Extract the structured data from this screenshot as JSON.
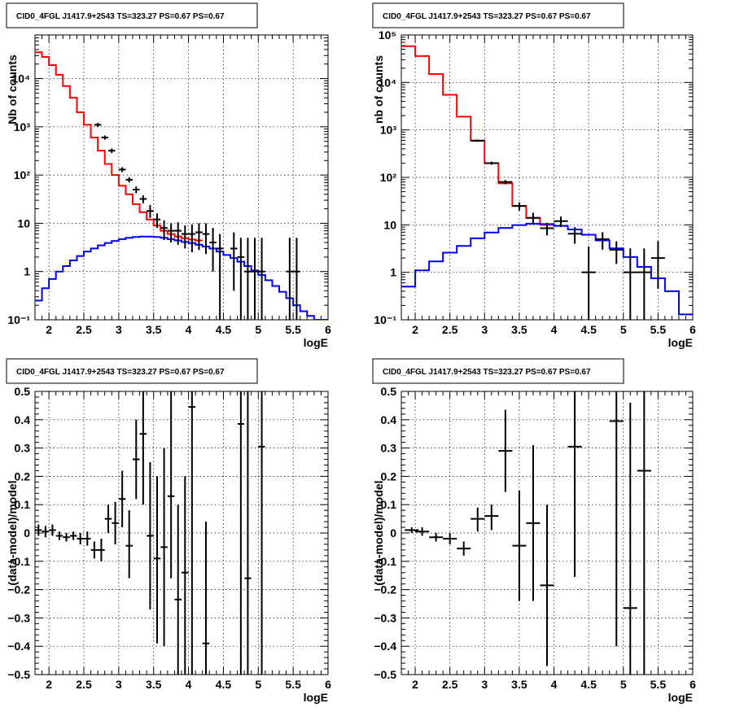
{
  "colors": {
    "data": "#000000",
    "total_model": "#ff0000",
    "component_model": "#0000ff",
    "grid": "#000000",
    "background": "#ffffff"
  },
  "chart_data": [
    {
      "type": "line",
      "scale_y": "log",
      "title": "CID0_4FGL J1417.9+2543 TS=323.27 PS=0.67 PS=0.67",
      "xlabel": "logE",
      "ylabel": "Nb of counts",
      "xlim": [
        1.8,
        6.0
      ],
      "ylim": [
        0.1,
        80000
      ],
      "x_ticks": [
        2,
        2.5,
        3,
        3.5,
        4,
        4.5,
        5,
        5.5,
        6
      ],
      "x_tick_labels": [
        "2",
        "2.5",
        "3",
        "3.5",
        "4",
        "4.5",
        "5",
        "5.5",
        "6"
      ],
      "y_ticks": [
        0.1,
        1,
        10,
        100,
        1000,
        10000
      ],
      "y_tick_labels": [
        "10⁻¹",
        "1",
        "10",
        "10²",
        "10³",
        "10⁴"
      ],
      "grid": true,
      "series": [
        {
          "kind": "step",
          "color": "total_model",
          "edges": [
            1.8,
            1.9,
            2.0,
            2.1,
            2.2,
            2.3,
            2.4,
            2.5,
            2.6,
            2.7,
            2.8,
            2.9,
            3.0,
            3.1,
            3.2,
            3.3,
            3.4,
            3.5,
            3.6,
            3.7,
            3.8,
            3.9,
            4.0,
            4.1,
            4.2
          ],
          "values": [
            35000,
            28000,
            19000,
            12000,
            7000,
            4000,
            2000,
            1100,
            600,
            320,
            170,
            100,
            60,
            40,
            25,
            17,
            12,
            9,
            7,
            6,
            5.3,
            4.9,
            4.6,
            4.4
          ]
        },
        {
          "kind": "step",
          "color": "component_model",
          "edges": [
            1.8,
            1.9,
            2.0,
            2.1,
            2.2,
            2.3,
            2.4,
            2.5,
            2.6,
            2.7,
            2.8,
            2.9,
            3.0,
            3.1,
            3.2,
            3.3,
            3.4,
            3.5,
            3.6,
            3.7,
            3.8,
            3.9,
            4.0,
            4.1,
            4.2,
            4.3,
            4.4,
            4.5,
            4.6,
            4.7,
            4.8,
            4.9,
            5.0,
            5.1,
            5.2,
            5.3,
            5.4,
            5.5,
            5.6,
            5.7,
            5.8,
            5.9,
            6.0
          ],
          "values": [
            0.25,
            0.45,
            0.7,
            1.0,
            1.3,
            1.7,
            2.1,
            2.6,
            3.0,
            3.5,
            3.9,
            4.3,
            4.7,
            5.0,
            5.2,
            5.3,
            5.3,
            5.2,
            5.0,
            4.7,
            4.4,
            4.1,
            3.9,
            3.6,
            3.3,
            3.0,
            2.6,
            2.2,
            1.9,
            1.6,
            1.3,
            1.05,
            0.85,
            0.66,
            0.5,
            0.38,
            0.28,
            0.2,
            0.15,
            0.12,
            0.1,
            0.1
          ]
        },
        {
          "kind": "errorbar",
          "color": "data",
          "x": [
            2.7,
            2.8,
            2.9,
            3.05,
            3.15,
            3.25,
            3.35,
            3.45,
            3.55,
            3.65,
            3.75,
            3.85,
            3.95,
            4.05,
            4.15,
            4.25,
            4.35,
            4.45,
            4.65,
            4.75,
            4.85,
            4.95,
            5.05,
            5.45,
            5.55
          ],
          "xerr": 0.05,
          "y": [
            1100,
            600,
            320,
            130,
            80,
            50,
            32,
            18,
            12,
            8,
            7,
            7,
            6,
            6,
            6.5,
            6,
            4,
            3,
            3,
            2,
            1,
            1,
            1,
            1,
            1
          ],
          "ylo": [
            1000,
            540,
            285,
            115,
            70,
            42,
            26,
            13,
            8,
            4.5,
            4,
            3.6,
            3.0,
            2.5,
            2.8,
            2.3,
            1.0,
            0.1,
            0.4,
            0.1,
            0.1,
            0.1,
            0.1,
            0.1,
            0.1
          ],
          "yhi": [
            1200,
            660,
            355,
            145,
            90,
            58,
            38,
            24,
            16,
            11.5,
            10,
            10.5,
            9,
            9.5,
            10,
            10,
            8,
            6,
            6.5,
            5,
            5,
            5,
            5,
            5,
            5
          ]
        }
      ]
    },
    {
      "type": "line",
      "scale_y": "log",
      "title": "CID0_4FGL J1417.9+2543 TS=323.27 PS=0.67 PS=0.67",
      "xlabel": "logE",
      "ylabel": "nb of counts",
      "xlim": [
        1.8,
        6.0
      ],
      "ylim": [
        0.1,
        100000
      ],
      "x_ticks": [
        2,
        2.5,
        3,
        3.5,
        4,
        4.5,
        5,
        5.5,
        6
      ],
      "x_tick_labels": [
        "2",
        "2.5",
        "3",
        "3.5",
        "4",
        "4.5",
        "5",
        "5.5",
        "6"
      ],
      "y_ticks": [
        0.1,
        1,
        10,
        100,
        1000,
        10000,
        100000
      ],
      "y_tick_labels": [
        "10⁻¹",
        "1",
        "10",
        "10²",
        "10³",
        "10⁴",
        "10⁵"
      ],
      "grid": true,
      "series": [
        {
          "kind": "step",
          "color": "total_model",
          "edges": [
            1.8,
            2.0,
            2.2,
            2.4,
            2.6,
            2.8,
            3.0,
            3.2,
            3.4,
            3.6,
            3.8,
            4.0
          ],
          "values": [
            58000,
            36000,
            15000,
            5500,
            1900,
            600,
            200,
            75,
            25,
            14,
            10
          ]
        },
        {
          "kind": "step",
          "color": "component_model",
          "edges": [
            1.8,
            2.0,
            2.2,
            2.4,
            2.6,
            2.8,
            3.0,
            3.2,
            3.4,
            3.6,
            3.8,
            4.0,
            4.2,
            4.4,
            4.6,
            4.8,
            5.0,
            5.2,
            5.4,
            5.6,
            5.8,
            6.0
          ],
          "values": [
            0.5,
            1.1,
            1.7,
            2.6,
            3.6,
            5.2,
            6.9,
            8.6,
            9.9,
            10.6,
            10.4,
            9.5,
            8.0,
            6.2,
            4.7,
            3.2,
            2.1,
            1.3,
            0.75,
            0.4,
            0.13
          ]
        },
        {
          "kind": "errorbar",
          "color": "data",
          "x": [
            2.9,
            3.1,
            3.3,
            3.5,
            3.7,
            3.9,
            4.1,
            4.3,
            4.5,
            4.7,
            4.9,
            5.1,
            5.3,
            5.5
          ],
          "xerr": 0.1,
          "y": [
            590,
            200,
            80,
            25,
            14,
            8.5,
            12,
            6.5,
            1,
            5,
            3,
            1,
            1,
            2
          ],
          "ylo": [
            560,
            185,
            72,
            20,
            10.5,
            6,
            9,
            4,
            0.1,
            3,
            1.5,
            0.1,
            0.1,
            0.45
          ],
          "yhi": [
            620,
            215,
            88,
            30,
            18,
            11,
            15,
            9,
            3.5,
            7,
            4.5,
            3.2,
            3.2,
            4.5
          ]
        }
      ]
    },
    {
      "type": "scatter",
      "title": "CID0_4FGL J1417.9+2543 TS=323.27 PS=0.67 PS=0.67",
      "xlabel": "logE",
      "ylabel": "(data-model)/model",
      "xlim": [
        1.8,
        6.0
      ],
      "ylim": [
        -0.5,
        0.5
      ],
      "x_ticks": [
        2,
        2.5,
        3,
        3.5,
        4,
        4.5,
        5,
        5.5,
        6
      ],
      "x_tick_labels": [
        "2",
        "2.5",
        "3",
        "3.5",
        "4",
        "4.5",
        "5",
        "5.5",
        "6"
      ],
      "y_ticks": [
        -0.5,
        -0.4,
        -0.3,
        -0.2,
        -0.1,
        0,
        0.1,
        0.2,
        0.3,
        0.4,
        0.5
      ],
      "y_tick_labels": [
        "−0.5",
        "−0.4",
        "−0.3",
        "−0.2",
        "−0.1",
        "0",
        "0.1",
        "0.2",
        "0.3",
        "0.4",
        "0.5"
      ],
      "grid": true,
      "series": [
        {
          "kind": "errorbar",
          "color": "data",
          "x": [
            1.85,
            1.95,
            2.05,
            2.15,
            2.25,
            2.35,
            2.45,
            2.55,
            2.65,
            2.75,
            2.85,
            2.95,
            3.05,
            3.15,
            3.25,
            3.35,
            3.45,
            3.55,
            3.65,
            3.75,
            3.85,
            3.95,
            4.05,
            4.25,
            4.75,
            4.85,
            5.05
          ],
          "xerr": [
            0.05,
            0.05,
            0.05,
            0.05,
            0.05,
            0.05,
            0.05,
            0.05,
            0.05,
            0.05,
            0.05,
            0.05,
            0.05,
            0.05,
            0.05,
            0.05,
            0.05,
            0.05,
            0.05,
            0.05,
            0.05,
            0.05,
            0.05,
            0.05,
            0,
            0,
            0
          ],
          "y": [
            0.01,
            0.005,
            0.01,
            -0.01,
            -0.015,
            -0.01,
            -0.02,
            -0.02,
            -0.06,
            -0.06,
            0.05,
            0.035,
            0.12,
            -0.045,
            0.26,
            0.35,
            -0.01,
            -0.09,
            -0.05,
            0.13,
            -0.235,
            -0.14,
            0.445,
            -0.39,
            0.385,
            -0.16,
            0.305
          ],
          "ylo": [
            -0.01,
            -0.015,
            -0.01,
            -0.025,
            -0.03,
            -0.025,
            -0.04,
            -0.045,
            -0.09,
            -0.1,
            0,
            -0.04,
            0.02,
            -0.16,
            0.12,
            0.1,
            -0.27,
            -0.39,
            -0.4,
            -0.16,
            -0.5,
            -0.5,
            -0.5,
            -0.5,
            -0.5,
            -0.5,
            -0.5
          ],
          "yhi": [
            0.03,
            0.025,
            0.03,
            0.005,
            0,
            0.005,
            0,
            0.005,
            -0.03,
            -0.02,
            0.1,
            0.11,
            0.22,
            0.08,
            0.4,
            0.5,
            0.25,
            0.2,
            0.3,
            0.5,
            0.1,
            0.2,
            0.5,
            0.04,
            0.5,
            0.5,
            0.5
          ]
        }
      ]
    },
    {
      "type": "scatter",
      "title": "CID0_4FGL J1417.9+2543 TS=323.27 PS=0.67 PS=0.67",
      "xlabel": "logE",
      "ylabel": "(data-model)/model",
      "xlim": [
        1.8,
        6.0
      ],
      "ylim": [
        -0.5,
        0.5
      ],
      "x_ticks": [
        2,
        2.5,
        3,
        3.5,
        4,
        4.5,
        5,
        5.5,
        6
      ],
      "x_tick_labels": [
        "2",
        "2.5",
        "3",
        "3.5",
        "4",
        "4.5",
        "5",
        "5.5",
        "6"
      ],
      "y_ticks": [
        -0.5,
        -0.4,
        -0.3,
        -0.2,
        -0.1,
        0,
        0.1,
        0.2,
        0.3,
        0.4,
        0.5
      ],
      "y_tick_labels": [
        "−0.5",
        "−0.4",
        "−0.3",
        "−0.2",
        "−0.1",
        "0",
        "0.1",
        "0.2",
        "0.3",
        "0.4",
        "0.5"
      ],
      "grid": true,
      "series": [
        {
          "kind": "errorbar",
          "color": "data",
          "x": [
            1.95,
            2.1,
            2.3,
            2.5,
            2.7,
            2.9,
            3.1,
            3.3,
            3.5,
            3.7,
            3.9,
            4.3,
            4.9,
            5.1,
            5.3
          ],
          "xerr": [
            0.1,
            0.1,
            0.1,
            0.1,
            0.1,
            0.1,
            0.1,
            0.1,
            0.1,
            0.1,
            0.1,
            0.1,
            0.1,
            0.1,
            0.1
          ],
          "y": [
            0.01,
            0.005,
            -0.015,
            -0.02,
            -0.055,
            0.05,
            0.06,
            0.29,
            -0.045,
            0.035,
            -0.185,
            0.305,
            0.395,
            -0.265,
            0.22
          ],
          "ylo": [
            0,
            -0.01,
            -0.03,
            -0.04,
            -0.08,
            0.005,
            0.01,
            0.145,
            -0.24,
            -0.24,
            -0.47,
            -0.155,
            -0.4,
            -0.5,
            -0.5
          ],
          "yhi": [
            0.02,
            0.02,
            0,
            0,
            -0.03,
            0.09,
            0.1,
            0.435,
            0.15,
            0.31,
            0.1,
            0.5,
            0.5,
            0.46,
            0.5
          ]
        }
      ]
    }
  ]
}
